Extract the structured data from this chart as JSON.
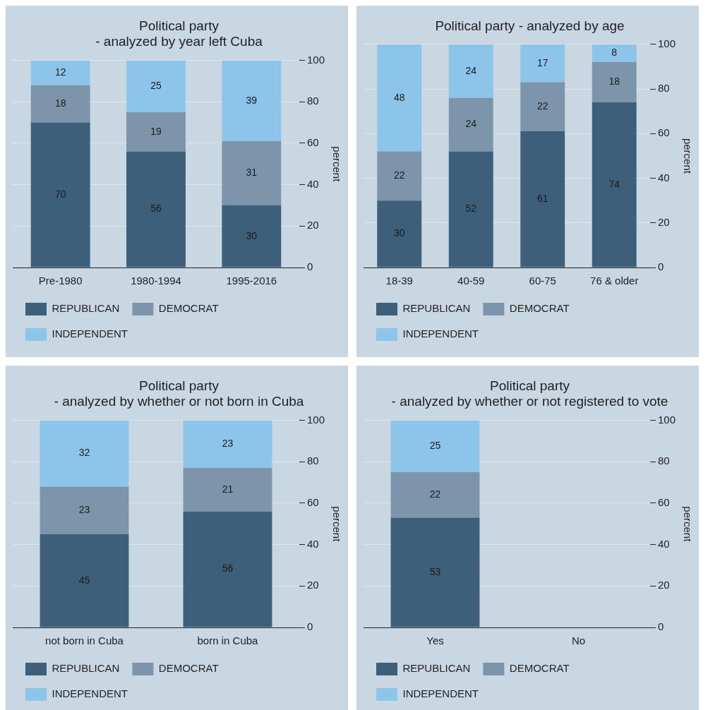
{
  "chart_data": [
    {
      "type": "bar",
      "title": "Political party\n- analyzed by year left Cuba",
      "ylabel": "percent",
      "categories": [
        "Pre-1980",
        "1980-1994",
        "1995-2016"
      ],
      "stacked": true,
      "series": [
        {
          "name": "REPUBLICAN",
          "color": "#3d5f7a",
          "values": [
            70,
            56,
            30
          ]
        },
        {
          "name": "DEMOCRAT",
          "color": "#7d95ab",
          "values": [
            18,
            19,
            31
          ]
        },
        {
          "name": "INDEPENDENT",
          "color": "#8cc4ea",
          "values": [
            12,
            25,
            39
          ]
        }
      ],
      "ylim": [
        0,
        100
      ],
      "yticks": [
        0,
        20,
        40,
        60,
        80,
        100
      ],
      "grid": "y",
      "legend": "bottom",
      "data_labels": true
    },
    {
      "type": "bar",
      "title": "Political party - analyzed by age",
      "ylabel": "percent",
      "categories": [
        "18-39",
        "40-59",
        "60-75",
        "76 & older"
      ],
      "stacked": true,
      "series": [
        {
          "name": "REPUBLICAN",
          "color": "#3d5f7a",
          "values": [
            30,
            52,
            61,
            74
          ]
        },
        {
          "name": "DEMOCRAT",
          "color": "#7d95ab",
          "values": [
            22,
            24,
            22,
            18
          ]
        },
        {
          "name": "INDEPENDENT",
          "color": "#8cc4ea",
          "values": [
            48,
            24,
            17,
            8
          ]
        }
      ],
      "ylim": [
        0,
        100
      ],
      "yticks": [
        0,
        20,
        40,
        60,
        80,
        100
      ],
      "grid": "y",
      "legend": "bottom",
      "data_labels": true
    },
    {
      "type": "bar",
      "title": "Political party\n- analyzed by whether or not born in Cuba",
      "ylabel": "percent",
      "categories": [
        "not born in Cuba",
        "born in Cuba"
      ],
      "stacked": true,
      "series": [
        {
          "name": "REPUBLICAN",
          "color": "#3d5f7a",
          "values": [
            45,
            56
          ]
        },
        {
          "name": "DEMOCRAT",
          "color": "#7d95ab",
          "values": [
            23,
            21
          ]
        },
        {
          "name": "INDEPENDENT",
          "color": "#8cc4ea",
          "values": [
            32,
            23
          ]
        }
      ],
      "ylim": [
        0,
        100
      ],
      "yticks": [
        0,
        20,
        40,
        60,
        80,
        100
      ],
      "grid": "y",
      "legend": "bottom",
      "data_labels": true
    },
    {
      "type": "bar",
      "title": "Political party\n- analyzed by whether or not registered to vote",
      "ylabel": "percent",
      "categories": [
        "Yes",
        "No"
      ],
      "stacked": true,
      "series": [
        {
          "name": "REPUBLICAN",
          "color": "#3d5f7a",
          "values": [
            53,
            null
          ]
        },
        {
          "name": "DEMOCRAT",
          "color": "#7d95ab",
          "values": [
            22,
            null
          ]
        },
        {
          "name": "INDEPENDENT",
          "color": "#8cc4ea",
          "values": [
            25,
            null
          ]
        }
      ],
      "ylim": [
        0,
        100
      ],
      "yticks": [
        0,
        20,
        40,
        60,
        80,
        100
      ],
      "grid": "y",
      "legend": "bottom",
      "data_labels": true
    }
  ]
}
